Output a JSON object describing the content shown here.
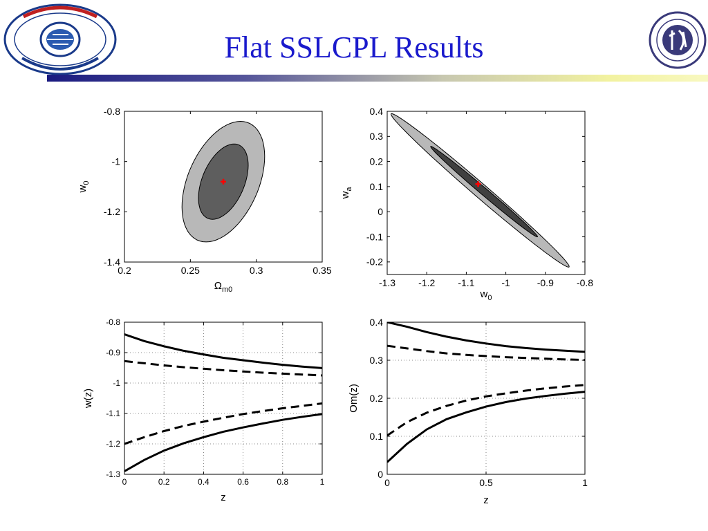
{
  "slide": {
    "title": "Flat SSLCPL Results",
    "title_color": "#1a1acc",
    "logo_left": {
      "icon": "hust-university-emblem"
    },
    "logo_right": {
      "icon": "hust-physics-emblem"
    }
  },
  "chart_data": [
    {
      "type": "contour",
      "xlabel_main": "Ω",
      "xlabel_sub": "m0",
      "ylabel_main": "w",
      "ylabel_sub": "0",
      "xlim": [
        0.2,
        0.35
      ],
      "ylim": [
        -1.4,
        -0.8
      ],
      "xticks": [
        0.2,
        0.25,
        0.3,
        0.35
      ],
      "xticklabels": [
        "0.2",
        "0.25",
        "0.3",
        "0.35"
      ],
      "yticks": [
        -1.4,
        -1.2,
        -1,
        -0.8
      ],
      "yticklabels": [
        "-1.4",
        "-1.2",
        "-1",
        "-0.8"
      ],
      "best_fit": {
        "x": 0.275,
        "y": -1.08
      },
      "contours": [
        {
          "level": "2-sigma",
          "cx": 0.275,
          "cy": -1.08,
          "rx": 0.0285,
          "ry": 0.24,
          "tilt": -0.13,
          "color": "#b8b8b8"
        },
        {
          "level": "1-sigma",
          "cx": 0.275,
          "cy": -1.08,
          "rx": 0.017,
          "ry": 0.15,
          "tilt": -0.13,
          "color": "#5e5e5e"
        }
      ]
    },
    {
      "type": "contour",
      "xlabel_main": "w",
      "xlabel_sub": "0",
      "ylabel_main": "w",
      "ylabel_sub": "a",
      "xlim": [
        -1.3,
        -0.8
      ],
      "ylim": [
        -0.25,
        0.4
      ],
      "xticks": [
        -1.3,
        -1.2,
        -1.1,
        -1,
        -0.9,
        -0.8
      ],
      "xticklabels": [
        "-1.3",
        "-1.2",
        "-1.1",
        "-1",
        "-0.9",
        "-0.8"
      ],
      "yticks": [
        -0.2,
        -0.1,
        0,
        0.1,
        0.2,
        0.3,
        0.4
      ],
      "yticklabels": [
        "-0.2",
        "-0.1",
        "0",
        "0.1",
        "0.2",
        "0.3",
        "0.4"
      ],
      "best_fit": {
        "x": -1.07,
        "y": 0.11
      },
      "contours": [
        {
          "level": "2-sigma",
          "from": [
            -1.29,
            0.39
          ],
          "to": [
            -0.84,
            -0.22
          ],
          "width": 0.035,
          "color": "#b8b8b8"
        },
        {
          "level": "1-sigma",
          "from": [
            -1.19,
            0.26
          ],
          "to": [
            -0.92,
            -0.1
          ],
          "width": 0.018,
          "color": "#404040"
        }
      ]
    },
    {
      "type": "line",
      "xlabel": "z",
      "ylabel": "w(z)",
      "xlim": [
        0,
        1
      ],
      "ylim": [
        -1.3,
        -0.8
      ],
      "xticks": [
        0,
        0.2,
        0.4,
        0.6,
        0.8,
        1
      ],
      "xticklabels": [
        "0",
        "0.2",
        "0.4",
        "0.6",
        "0.8",
        "1"
      ],
      "yticks": [
        -1.3,
        -1.2,
        -1.1,
        -1,
        -0.9,
        -0.8
      ],
      "yticklabels": [
        "-1.3",
        "-1.2",
        "-1.1",
        "-1",
        "-0.9",
        "-0.8"
      ],
      "grid": true,
      "series": [
        {
          "style": "solid",
          "x": [
            0,
            0.1,
            0.2,
            0.3,
            0.4,
            0.5,
            0.6,
            0.7,
            0.8,
            0.9,
            1.0
          ],
          "y": [
            -0.84,
            -0.862,
            -0.879,
            -0.894,
            -0.906,
            -0.917,
            -0.925,
            -0.933,
            -0.94,
            -0.946,
            -0.951
          ]
        },
        {
          "style": "dashed",
          "x": [
            0,
            0.1,
            0.2,
            0.3,
            0.4,
            0.5,
            0.6,
            0.7,
            0.8,
            0.9,
            1.0
          ],
          "y": [
            -0.928,
            -0.935,
            -0.942,
            -0.948,
            -0.953,
            -0.958,
            -0.962,
            -0.966,
            -0.969,
            -0.972,
            -0.975
          ]
        },
        {
          "style": "dashed",
          "x": [
            0,
            0.1,
            0.2,
            0.3,
            0.4,
            0.5,
            0.6,
            0.7,
            0.8,
            0.9,
            1.0
          ],
          "y": [
            -1.2,
            -1.178,
            -1.158,
            -1.141,
            -1.127,
            -1.114,
            -1.102,
            -1.092,
            -1.083,
            -1.075,
            -1.067
          ]
        },
        {
          "style": "solid",
          "x": [
            0,
            0.1,
            0.2,
            0.3,
            0.4,
            0.5,
            0.6,
            0.7,
            0.8,
            0.9,
            1.0
          ],
          "y": [
            -1.29,
            -1.253,
            -1.222,
            -1.198,
            -1.178,
            -1.16,
            -1.146,
            -1.133,
            -1.121,
            -1.111,
            -1.102
          ]
        }
      ]
    },
    {
      "type": "line",
      "xlabel": "z",
      "ylabel": "Om(z)",
      "xlim": [
        0,
        1
      ],
      "ylim": [
        0,
        0.4
      ],
      "xticks": [
        0,
        0.5,
        1
      ],
      "xticklabels": [
        "0",
        "0.5",
        "1"
      ],
      "yticks": [
        0,
        0.1,
        0.2,
        0.3,
        0.4
      ],
      "yticklabels": [
        "0",
        "0.1",
        "0.2",
        "0.3",
        "0.4"
      ],
      "grid": true,
      "series": [
        {
          "style": "solid",
          "x": [
            0,
            0.1,
            0.2,
            0.3,
            0.4,
            0.5,
            0.6,
            0.7,
            0.8,
            0.9,
            1.0
          ],
          "y": [
            0.4,
            0.388,
            0.374,
            0.362,
            0.352,
            0.344,
            0.337,
            0.332,
            0.328,
            0.325,
            0.322
          ]
        },
        {
          "style": "dashed",
          "x": [
            0,
            0.1,
            0.2,
            0.3,
            0.4,
            0.5,
            0.6,
            0.7,
            0.8,
            0.9,
            1.0
          ],
          "y": [
            0.338,
            0.331,
            0.324,
            0.318,
            0.314,
            0.311,
            0.308,
            0.306,
            0.304,
            0.302,
            0.301
          ]
        },
        {
          "style": "dashed",
          "x": [
            0,
            0.1,
            0.2,
            0.3,
            0.4,
            0.5,
            0.6,
            0.7,
            0.8,
            0.9,
            1.0
          ],
          "y": [
            0.102,
            0.137,
            0.162,
            0.18,
            0.194,
            0.205,
            0.213,
            0.22,
            0.226,
            0.231,
            0.235
          ]
        },
        {
          "style": "solid",
          "x": [
            0,
            0.1,
            0.2,
            0.3,
            0.4,
            0.5,
            0.6,
            0.7,
            0.8,
            0.9,
            1.0
          ],
          "y": [
            0.032,
            0.08,
            0.118,
            0.145,
            0.163,
            0.178,
            0.19,
            0.199,
            0.206,
            0.212,
            0.217
          ]
        }
      ]
    }
  ]
}
